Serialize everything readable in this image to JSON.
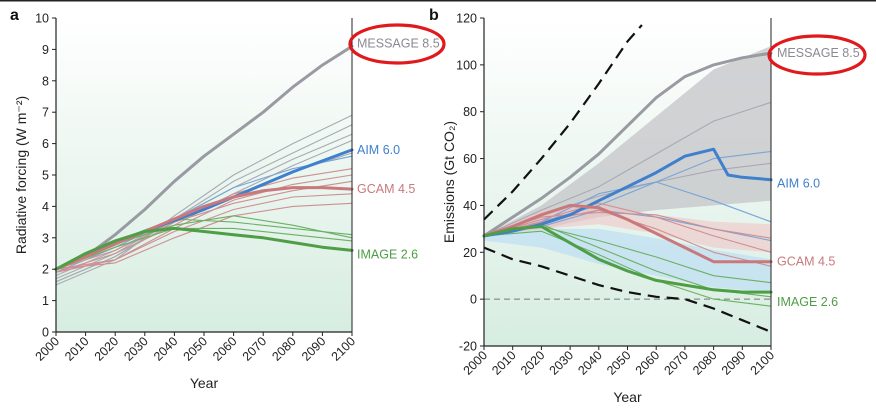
{
  "chart_data": [
    {
      "type": "line",
      "panel": "a",
      "xlabel": "Year",
      "ylabel": "Radiative forcing (W m⁻²)",
      "xlim": [
        2000,
        2100
      ],
      "ylim": [
        0,
        10
      ],
      "xticks": [
        2000,
        2010,
        2020,
        2030,
        2040,
        2050,
        2060,
        2070,
        2080,
        2090,
        2100
      ],
      "yticks": [
        0,
        1,
        2,
        3,
        4,
        5,
        6,
        7,
        8,
        9,
        10
      ],
      "grid": false,
      "background": "pale mint gradient",
      "series": [
        {
          "name": "MESSAGE 8.5",
          "color": "#999aa2",
          "label_color": "#8a8a92",
          "highlight": true,
          "x": [
            2000,
            2010,
            2020,
            2030,
            2040,
            2050,
            2060,
            2070,
            2080,
            2090,
            2100
          ],
          "y": [
            2.0,
            2.4,
            3.1,
            3.9,
            4.8,
            5.6,
            6.3,
            7.0,
            7.8,
            8.5,
            9.1
          ]
        },
        {
          "name": "AIM 6.0",
          "color": "#3f7fcc",
          "label_color": "#3f7fcc",
          "x": [
            2000,
            2010,
            2020,
            2030,
            2040,
            2050,
            2060,
            2070,
            2080,
            2090,
            2100
          ],
          "y": [
            2.0,
            2.45,
            2.85,
            3.2,
            3.55,
            3.9,
            4.3,
            4.7,
            5.1,
            5.45,
            5.8
          ]
        },
        {
          "name": "GCAM 4.5",
          "color": "#c9797c",
          "label_color": "#c9797c",
          "x": [
            2000,
            2010,
            2020,
            2030,
            2040,
            2050,
            2060,
            2070,
            2080,
            2090,
            2100
          ],
          "y": [
            2.0,
            2.4,
            2.8,
            3.2,
            3.6,
            4.0,
            4.3,
            4.5,
            4.6,
            4.6,
            4.55
          ]
        },
        {
          "name": "IMAGE 2.6",
          "color": "#4e9e45",
          "label_color": "#4e9e45",
          "x": [
            2000,
            2010,
            2020,
            2030,
            2040,
            2050,
            2060,
            2070,
            2080,
            2090,
            2100
          ],
          "y": [
            2.0,
            2.5,
            2.9,
            3.2,
            3.3,
            3.2,
            3.1,
            3.0,
            2.85,
            2.7,
            2.6
          ]
        }
      ],
      "ensemble": [
        {
          "color": "#a9a9b2",
          "x": [
            2000,
            2020,
            2040,
            2060,
            2080,
            2100
          ],
          "y": [
            1.5,
            2.3,
            3.7,
            5.0,
            6.0,
            6.9
          ]
        },
        {
          "color": "#a9a9b2",
          "x": [
            2000,
            2020,
            2040,
            2060,
            2080,
            2100
          ],
          "y": [
            1.6,
            2.4,
            3.6,
            4.8,
            5.7,
            6.6
          ]
        },
        {
          "color": "#a9a9b2",
          "x": [
            2000,
            2020,
            2040,
            2060,
            2080,
            2100
          ],
          "y": [
            1.7,
            2.5,
            3.6,
            4.6,
            5.5,
            6.3
          ]
        },
        {
          "color": "#a9a9b2",
          "x": [
            2000,
            2020,
            2040,
            2060,
            2080,
            2100
          ],
          "y": [
            1.6,
            2.4,
            3.5,
            4.4,
            5.3,
            6.1
          ]
        },
        {
          "color": "#a9a9b2",
          "x": [
            2000,
            2020,
            2040,
            2060,
            2080,
            2100
          ],
          "y": [
            1.8,
            2.6,
            3.6,
            4.3,
            5.1,
            5.7
          ]
        },
        {
          "color": "#7aa4d8",
          "x": [
            2000,
            2020,
            2040,
            2060,
            2080,
            2100
          ],
          "y": [
            1.9,
            2.7,
            3.6,
            4.6,
            5.2,
            5.6
          ]
        },
        {
          "color": "#cf8f91",
          "x": [
            2000,
            2020,
            2040,
            2060,
            2080,
            2100
          ],
          "y": [
            1.9,
            2.5,
            3.4,
            4.4,
            4.9,
            5.2
          ]
        },
        {
          "color": "#cf8f91",
          "x": [
            2000,
            2020,
            2040,
            2060,
            2080,
            2100
          ],
          "y": [
            1.9,
            2.3,
            3.3,
            4.2,
            4.7,
            5.0
          ]
        },
        {
          "color": "#cf8f91",
          "x": [
            2000,
            2020,
            2040,
            2060,
            2080,
            2100
          ],
          "y": [
            2.0,
            2.6,
            3.5,
            4.1,
            4.5,
            4.8
          ]
        },
        {
          "color": "#cf8f91",
          "x": [
            2000,
            2020,
            2040,
            2060,
            2080,
            2100
          ],
          "y": [
            2.0,
            2.2,
            3.0,
            3.7,
            4.0,
            4.1
          ]
        },
        {
          "color": "#cf8f91",
          "x": [
            2000,
            2020,
            2040,
            2060,
            2080,
            2100
          ],
          "y": [
            2.0,
            2.3,
            3.2,
            3.9,
            4.3,
            4.4
          ]
        },
        {
          "color": "#6cb064",
          "x": [
            2000,
            2020,
            2040,
            2060,
            2080,
            2100
          ],
          "y": [
            2.0,
            2.9,
            3.6,
            3.5,
            3.3,
            3.1
          ]
        },
        {
          "color": "#6cb064",
          "x": [
            2000,
            2020,
            2040,
            2060,
            2080,
            2100
          ],
          "y": [
            2.0,
            2.8,
            3.4,
            3.7,
            3.4,
            3.0
          ]
        },
        {
          "color": "#6cb064",
          "x": [
            2000,
            2020,
            2040,
            2060,
            2080,
            2100
          ],
          "y": [
            2.0,
            2.7,
            3.3,
            3.3,
            3.1,
            2.9
          ]
        }
      ]
    },
    {
      "type": "line",
      "panel": "b",
      "xlabel": "Year",
      "ylabel": "Emissions (Gt CO₂)",
      "xlim": [
        2000,
        2100
      ],
      "ylim": [
        -20,
        120
      ],
      "xticks": [
        2000,
        2010,
        2020,
        2030,
        2040,
        2050,
        2060,
        2070,
        2080,
        2090,
        2100
      ],
      "yticks": [
        -20,
        0,
        20,
        40,
        60,
        80,
        100,
        120
      ],
      "grid": false,
      "zero_line": "dashed grey",
      "background": "pale mint gradient",
      "series": [
        {
          "name": "MESSAGE 8.5",
          "color": "#999aa2",
          "label_color": "#8a8a92",
          "highlight": true,
          "x": [
            2000,
            2010,
            2020,
            2030,
            2040,
            2050,
            2060,
            2070,
            2080,
            2090,
            2100
          ],
          "y": [
            27,
            35,
            43,
            52,
            62,
            74,
            86,
            95,
            100,
            103,
            105
          ]
        },
        {
          "name": "AIM 6.0",
          "color": "#3f7fcc",
          "label_color": "#3f7fcc",
          "x": [
            2000,
            2010,
            2020,
            2030,
            2040,
            2050,
            2060,
            2070,
            2080,
            2085,
            2090,
            2100
          ],
          "y": [
            27,
            29,
            32,
            36,
            42,
            48,
            54,
            61,
            64,
            53,
            52,
            51
          ]
        },
        {
          "name": "GCAM 4.5",
          "color": "#c9797c",
          "label_color": "#c9797c",
          "x": [
            2000,
            2010,
            2020,
            2030,
            2040,
            2050,
            2060,
            2070,
            2080,
            2090,
            2100
          ],
          "y": [
            27,
            31,
            36,
            40,
            39,
            34,
            28,
            22,
            16,
            16,
            16
          ]
        },
        {
          "name": "IMAGE 2.6",
          "color": "#4e9e45",
          "label_color": "#4e9e45",
          "x": [
            2000,
            2010,
            2020,
            2030,
            2040,
            2050,
            2060,
            2070,
            2080,
            2090,
            2100
          ],
          "y": [
            27,
            30,
            31,
            24,
            17,
            12,
            8,
            6,
            4,
            3,
            3
          ]
        }
      ],
      "bounds": [
        {
          "style": "dashed black",
          "x": [
            2000,
            2010,
            2020,
            2030,
            2040,
            2050,
            2055
          ],
          "y": [
            34,
            46,
            60,
            75,
            92,
            110,
            117
          ]
        },
        {
          "style": "dashed black",
          "x": [
            2000,
            2010,
            2020,
            2030,
            2040,
            2050,
            2060,
            2070,
            2080,
            2090,
            2100
          ],
          "y": [
            22,
            17,
            14,
            10,
            6,
            3,
            1,
            0,
            -4,
            -9,
            -14
          ]
        }
      ],
      "bands": [
        {
          "color": "#c4c4c8",
          "opacity": 0.75,
          "x": [
            2000,
            2020,
            2040,
            2060,
            2080,
            2100
          ],
          "upper": [
            27,
            40,
            58,
            78,
            98,
            108
          ],
          "lower": [
            27,
            30,
            35,
            38,
            40,
            42
          ]
        },
        {
          "color": "#f0c4c6",
          "opacity": 0.6,
          "x": [
            2000,
            2020,
            2040,
            2060,
            2080,
            2100
          ],
          "upper": [
            28,
            38,
            40,
            36,
            33,
            32
          ],
          "lower": [
            26,
            30,
            32,
            28,
            22,
            20
          ]
        },
        {
          "color": "#c4e2f2",
          "opacity": 0.85,
          "x": [
            2000,
            2020,
            2040,
            2060,
            2080,
            2100
          ],
          "upper": [
            27,
            30,
            30,
            26,
            21,
            17
          ],
          "lower": [
            25,
            22,
            15,
            10,
            5,
            3
          ]
        }
      ],
      "ensemble": [
        {
          "color": "#a9a9b2",
          "x": [
            2000,
            2020,
            2040,
            2060,
            2080,
            2100
          ],
          "y": [
            27,
            38,
            48,
            62,
            76,
            84
          ]
        },
        {
          "color": "#a9a9b2",
          "x": [
            2000,
            2020,
            2040,
            2060,
            2080,
            2100
          ],
          "y": [
            27,
            36,
            44,
            50,
            55,
            58
          ]
        },
        {
          "color": "#7aa4d8",
          "x": [
            2000,
            2020,
            2040,
            2060,
            2080,
            2100
          ],
          "y": [
            27,
            33,
            40,
            50,
            60,
            63
          ]
        },
        {
          "color": "#7aa4d8",
          "x": [
            2000,
            2020,
            2040,
            2060,
            2080,
            2100
          ],
          "y": [
            27,
            31,
            38,
            35,
            30,
            25
          ]
        },
        {
          "color": "#7aa4d8",
          "x": [
            2000,
            2020,
            2040,
            2060,
            2080,
            2100
          ],
          "y": [
            27,
            33,
            45,
            50,
            42,
            33
          ]
        },
        {
          "color": "#cf8f91",
          "x": [
            2000,
            2020,
            2040,
            2060,
            2080,
            2100
          ],
          "y": [
            27,
            35,
            37,
            36,
            30,
            26
          ]
        },
        {
          "color": "#cf8f91",
          "x": [
            2000,
            2020,
            2040,
            2060,
            2080,
            2100
          ],
          "y": [
            27,
            34,
            41,
            35,
            27,
            20
          ]
        },
        {
          "color": "#cf8f91",
          "x": [
            2000,
            2020,
            2040,
            2060,
            2080,
            2100
          ],
          "y": [
            27,
            33,
            38,
            30,
            20,
            14
          ]
        },
        {
          "color": "#6cb064",
          "x": [
            2000,
            2020,
            2040,
            2060,
            2080,
            2100
          ],
          "y": [
            27,
            31,
            25,
            18,
            10,
            7
          ]
        },
        {
          "color": "#6cb064",
          "x": [
            2000,
            2020,
            2040,
            2060,
            2080,
            2100
          ],
          "y": [
            27,
            29,
            19,
            8,
            0,
            -3
          ]
        },
        {
          "color": "#6cb064",
          "x": [
            2000,
            2020,
            2040,
            2060,
            2080,
            2100
          ],
          "y": [
            27,
            32,
            22,
            12,
            4,
            1
          ]
        }
      ]
    }
  ],
  "highlight_color": "#e0191c"
}
